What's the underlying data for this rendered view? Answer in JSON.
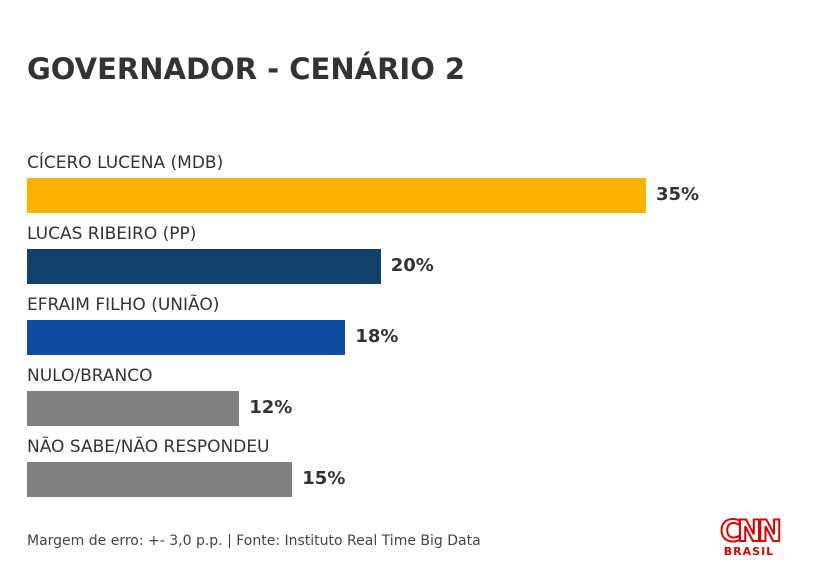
{
  "chart_data": {
    "type": "bar",
    "orientation": "horizontal",
    "title": "GOVERNADOR - CENÁRIO 2",
    "categories": [
      "CÍCERO LUCENA (MDB)",
      "LUCAS RIBEIRO (PP)",
      "EFRAIM FILHO (UNIÃO)",
      "NULO/BRANCO",
      "NÃO SABE/NÃO RESPONDEU"
    ],
    "values": [
      35,
      20,
      18,
      12,
      15
    ],
    "value_labels": [
      "35%",
      "20%",
      "18%",
      "12%",
      "15%"
    ],
    "colors": [
      "#FFB300",
      "#12426B",
      "#0C4DA2",
      "#808080",
      "#808080"
    ],
    "xlim": [
      0,
      35
    ],
    "grid": false
  },
  "footer": "Margem de erro: +- 3,0 p.p. | Fonte: Instituto Real Time Big Data",
  "logo": {
    "text": "CNN",
    "sub": "BRASIL",
    "color": "#D00000"
  }
}
